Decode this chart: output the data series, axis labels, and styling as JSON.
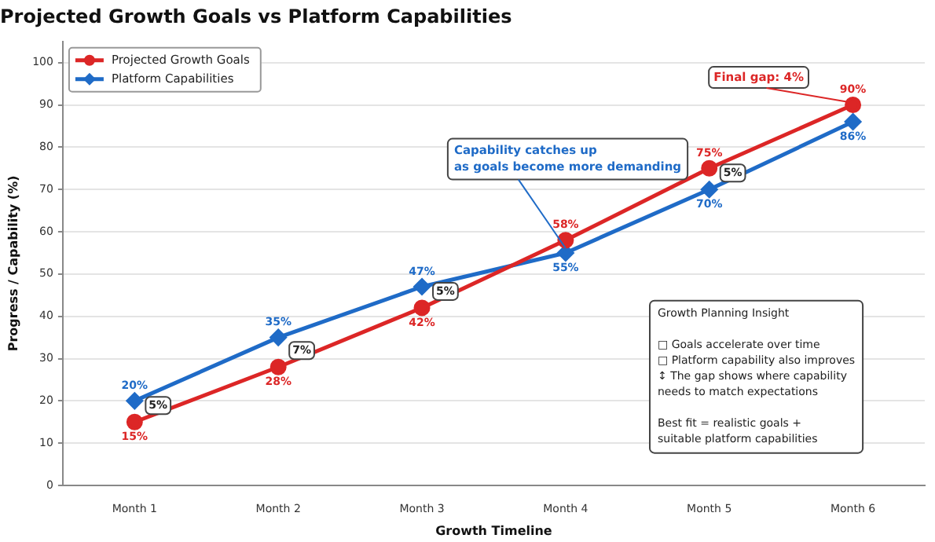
{
  "chart_data": {
    "type": "line",
    "title": "Projected Growth Goals vs Platform Capabilities",
    "xlabel": "Growth Timeline",
    "ylabel": "Progress / Capability (%)",
    "categories": [
      "Month 1",
      "Month 2",
      "Month 3",
      "Month 4",
      "Month 5",
      "Month 6"
    ],
    "series": [
      {
        "name": "Projected Growth Goals",
        "color": "#dc2626",
        "marker": "circle",
        "values": [
          15,
          28,
          42,
          58,
          75,
          90
        ],
        "value_labels": [
          "15%",
          "28%",
          "42%",
          "58%",
          "75%",
          "90%"
        ]
      },
      {
        "name": "Platform Capabilities",
        "color": "#1f6bc7",
        "marker": "diamond",
        "values": [
          20,
          35,
          47,
          55,
          70,
          86
        ],
        "value_labels": [
          "20%",
          "35%",
          "47%",
          "55%",
          "70%",
          "86%"
        ]
      }
    ],
    "ylim": [
      0,
      105
    ],
    "yticks": [
      0,
      10,
      20,
      30,
      40,
      50,
      60,
      70,
      80,
      90,
      100
    ],
    "grid": "y",
    "legend": "top left",
    "line_style": "solid",
    "annotations": [
      {
        "text": "5%",
        "x": "Month 1",
        "y": 15
      },
      {
        "text": "7%",
        "x": "Month 2",
        "y": 28
      },
      {
        "text": "5%",
        "x": "Month 3",
        "y": 42
      },
      {
        "text": "5%",
        "x": "Month 5",
        "y": 70
      },
      {
        "text": "Final gap: 4%",
        "x": "Month 6",
        "y": 90
      },
      {
        "text": "Capability catches up\nas goals become more demanding",
        "x": "Month 4",
        "y": 55
      },
      "Growth Planning Insight\n\n□ Goals accelerate over time\n□ Platform capability also improves\n↕ The gap shows where capability\nneeds to match expectations\n\nBest fit = realistic goals +\nsuitable platform capabilities"
    ]
  }
}
